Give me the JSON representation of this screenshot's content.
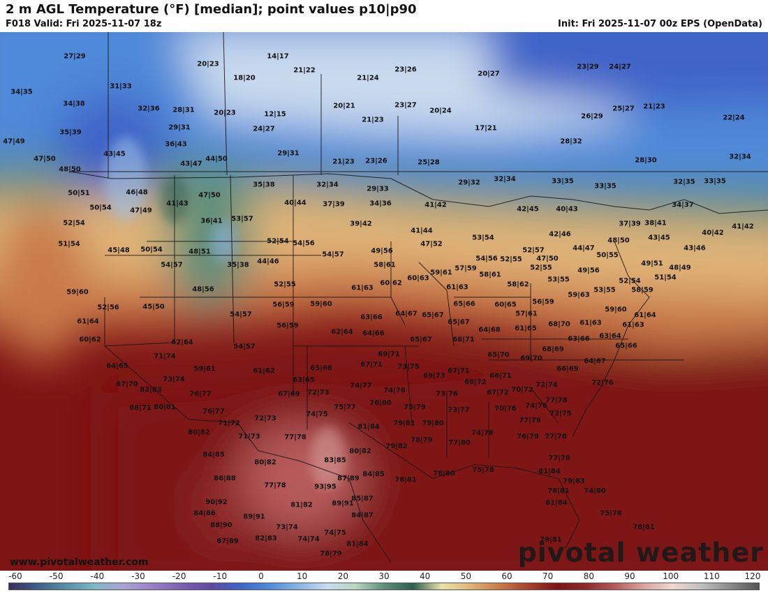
{
  "header": {
    "title": "2 m AGL Temperature (°F) [median]; point values p10|p90",
    "valid": "F018 Valid: Fri 2025-11-07 18z",
    "init": "Init: Fri 2025-11-07 00z EPS (OpenData)"
  },
  "footer": {
    "website": "www.pivotalweather.com",
    "brand": "pivotal weather"
  },
  "scale": {
    "ticks": [
      "-60",
      "-50",
      "-40",
      "-30",
      "-20",
      "-10",
      "0",
      "10",
      "20",
      "30",
      "40",
      "50",
      "60",
      "70",
      "80",
      "90",
      "100",
      "110",
      "120"
    ],
    "colors": [
      "#3a2d5c",
      "#3f5f8a",
      "#5a8fa8",
      "#7fb9c8",
      "#a9a3d4",
      "#9a7fc7",
      "#7b5fb2",
      "#5f4aa0",
      "#3f63c8",
      "#4f89d9",
      "#86b3e6",
      "#c9daee",
      "#b8d8c4",
      "#5f8f7a",
      "#2d5f4f",
      "#e9e3a6",
      "#e0b478",
      "#c97a4a",
      "#a8432c",
      "#7e1414",
      "#8f2a2a",
      "#b65a5a",
      "#d9a4a0",
      "#f1d6cf",
      "#c0c0c0",
      "#8a8a8a",
      "#555555"
    ]
  },
  "points": [
    {
      "id": "p1",
      "text": "27|29"
    },
    {
      "id": "p2",
      "text": "20|23"
    },
    {
      "id": "p3",
      "text": "14|17"
    },
    {
      "id": "p4",
      "text": "21|22"
    },
    {
      "id": "p5",
      "text": "23|26"
    },
    {
      "id": "p6",
      "text": "20|27"
    },
    {
      "id": "p7",
      "text": "23|29"
    },
    {
      "id": "p8",
      "text": "24|27"
    },
    {
      "id": "p9",
      "text": "34|35"
    },
    {
      "id": "p10",
      "text": "31|33"
    },
    {
      "id": "p11",
      "text": "18|20"
    },
    {
      "id": "p12",
      "text": "21|24"
    },
    {
      "id": "p13",
      "text": "34|38"
    },
    {
      "id": "p14",
      "text": "32|36"
    },
    {
      "id": "p15",
      "text": "28|31"
    },
    {
      "id": "p16",
      "text": "20|23"
    },
    {
      "id": "p17",
      "text": "12|15"
    },
    {
      "id": "p18",
      "text": "20|21"
    },
    {
      "id": "p19",
      "text": "23|27"
    },
    {
      "id": "p20",
      "text": "20|24"
    },
    {
      "id": "p21",
      "text": "25|27"
    },
    {
      "id": "p22",
      "text": "21|23"
    },
    {
      "id": "p23",
      "text": "26|29"
    },
    {
      "id": "p24",
      "text": "21|23"
    },
    {
      "id": "p25",
      "text": "22|24"
    },
    {
      "id": "p26",
      "text": "35|39"
    },
    {
      "id": "p27",
      "text": "29|31"
    },
    {
      "id": "p28",
      "text": "24|27"
    },
    {
      "id": "p29",
      "text": "17|21"
    },
    {
      "id": "p30",
      "text": "28|32"
    },
    {
      "id": "p31",
      "text": "47|49"
    },
    {
      "id": "p32",
      "text": "36|43"
    },
    {
      "id": "p33",
      "text": "29|31"
    },
    {
      "id": "p34",
      "text": "43|45"
    },
    {
      "id": "p35",
      "text": "47|50"
    },
    {
      "id": "p36",
      "text": "43|47"
    },
    {
      "id": "p37",
      "text": "44|50"
    },
    {
      "id": "p38",
      "text": "21|23"
    },
    {
      "id": "p39",
      "text": "23|26"
    },
    {
      "id": "p40",
      "text": "25|28"
    },
    {
      "id": "p41",
      "text": "28|30"
    },
    {
      "id": "p42",
      "text": "32|34"
    },
    {
      "id": "p43",
      "text": "48|50"
    },
    {
      "id": "p44",
      "text": "35|38"
    },
    {
      "id": "p45",
      "text": "32|34"
    },
    {
      "id": "p46",
      "text": "29|33"
    },
    {
      "id": "p47",
      "text": "29|32"
    },
    {
      "id": "p48",
      "text": "32|34"
    },
    {
      "id": "p49",
      "text": "33|35"
    },
    {
      "id": "p50",
      "text": "33|35"
    },
    {
      "id": "p51",
      "text": "32|35"
    },
    {
      "id": "p52",
      "text": "33|35"
    },
    {
      "id": "p53",
      "text": "50|51"
    },
    {
      "id": "p54",
      "text": "46|48"
    },
    {
      "id": "p55",
      "text": "47|50"
    },
    {
      "id": "p56",
      "text": "40|44"
    },
    {
      "id": "p57",
      "text": "37|39"
    },
    {
      "id": "p58",
      "text": "34|36"
    },
    {
      "id": "p59",
      "text": "41|42"
    },
    {
      "id": "p60",
      "text": "42|45"
    },
    {
      "id": "p61",
      "text": "40|43"
    },
    {
      "id": "p62",
      "text": "34|37"
    },
    {
      "id": "p63",
      "text": "50|54"
    },
    {
      "id": "p64",
      "text": "47|49"
    },
    {
      "id": "p65",
      "text": "41|43"
    },
    {
      "id": "p66",
      "text": "36|41"
    },
    {
      "id": "p67",
      "text": "53|57"
    },
    {
      "id": "p68",
      "text": "39|42"
    },
    {
      "id": "p69",
      "text": "41|44"
    },
    {
      "id": "p70",
      "text": "42|46"
    },
    {
      "id": "p71",
      "text": "37|39"
    },
    {
      "id": "p72",
      "text": "38|41"
    },
    {
      "id": "p73",
      "text": "40|42"
    },
    {
      "id": "p74",
      "text": "41|42"
    },
    {
      "id": "p75",
      "text": "52|54"
    },
    {
      "id": "p76",
      "text": "51|54"
    },
    {
      "id": "p77",
      "text": "47|52"
    },
    {
      "id": "p78",
      "text": "48|50"
    },
    {
      "id": "p79",
      "text": "43|45"
    },
    {
      "id": "p80",
      "text": "53|54"
    },
    {
      "id": "p81",
      "text": "45|48"
    },
    {
      "id": "p82",
      "text": "50|54"
    },
    {
      "id": "p83",
      "text": "48|51"
    },
    {
      "id": "p84",
      "text": "52|54"
    },
    {
      "id": "p85",
      "text": "54|56"
    },
    {
      "id": "p86",
      "text": "49|56"
    },
    {
      "id": "p87",
      "text": "52|57"
    },
    {
      "id": "p88",
      "text": "44|47"
    },
    {
      "id": "p89",
      "text": "50|55"
    },
    {
      "id": "p90",
      "text": "43|46"
    },
    {
      "id": "p91",
      "text": "49|51"
    },
    {
      "id": "p92",
      "text": "54|57"
    },
    {
      "id": "p93",
      "text": "35|38"
    },
    {
      "id": "p94",
      "text": "44|46"
    },
    {
      "id": "p95",
      "text": "54|57"
    },
    {
      "id": "p96",
      "text": "58|61"
    },
    {
      "id": "p97",
      "text": "54|56"
    },
    {
      "id": "p98",
      "text": "52|55"
    },
    {
      "id": "p99",
      "text": "47|50"
    },
    {
      "id": "p100",
      "text": "52|55"
    },
    {
      "id": "p101",
      "text": "49|56"
    },
    {
      "id": "p102",
      "text": "48|49"
    },
    {
      "id": "p103",
      "text": "51|54"
    },
    {
      "id": "p104",
      "text": "59|60"
    },
    {
      "id": "p105",
      "text": "48|56"
    },
    {
      "id": "p106",
      "text": "52|55"
    },
    {
      "id": "p107",
      "text": "59|61"
    },
    {
      "id": "p108",
      "text": "57|59"
    },
    {
      "id": "p109",
      "text": "58|61"
    },
    {
      "id": "p110",
      "text": "53|55"
    },
    {
      "id": "p111",
      "text": "52|54"
    },
    {
      "id": "p112",
      "text": "61|63"
    },
    {
      "id": "p113",
      "text": "60|62"
    },
    {
      "id": "p114",
      "text": "60|63"
    },
    {
      "id": "p115",
      "text": "58|62"
    },
    {
      "id": "p116",
      "text": "53|55"
    },
    {
      "id": "p117",
      "text": "58|59"
    },
    {
      "id": "p118",
      "text": "52|56"
    },
    {
      "id": "p119",
      "text": "45|50"
    },
    {
      "id": "p120",
      "text": "56|59"
    },
    {
      "id": "p121",
      "text": "59|60"
    },
    {
      "id": "p122",
      "text": "61|63"
    },
    {
      "id": "p123",
      "text": "65|66"
    },
    {
      "id": "p124",
      "text": "60|65"
    },
    {
      "id": "p125",
      "text": "56|59"
    },
    {
      "id": "p126",
      "text": "59|63"
    },
    {
      "id": "p127",
      "text": "59|60"
    },
    {
      "id": "p128",
      "text": "61|64"
    },
    {
      "id": "p129",
      "text": "54|57"
    },
    {
      "id": "p130",
      "text": "63|66"
    },
    {
      "id": "p131",
      "text": "64|67"
    },
    {
      "id": "p132",
      "text": "65|67"
    },
    {
      "id": "p133",
      "text": "57|61"
    },
    {
      "id": "p134",
      "text": "56|59"
    },
    {
      "id": "p135",
      "text": "62|64"
    },
    {
      "id": "p136",
      "text": "65|67"
    },
    {
      "id": "p137",
      "text": "64|68"
    },
    {
      "id": "p138",
      "text": "61|65"
    },
    {
      "id": "p139",
      "text": "68|70"
    },
    {
      "id": "p140",
      "text": "61|63"
    },
    {
      "id": "p141",
      "text": "61|63"
    },
    {
      "id": "p142",
      "text": "61|64"
    },
    {
      "id": "p143",
      "text": "64|66"
    },
    {
      "id": "p144",
      "text": "65|67"
    },
    {
      "id": "p145",
      "text": "68|71"
    },
    {
      "id": "p146",
      "text": "63|66"
    },
    {
      "id": "p147",
      "text": "63|64"
    },
    {
      "id": "p148",
      "text": "60|62"
    },
    {
      "id": "p149",
      "text": "62|64"
    },
    {
      "id": "p150",
      "text": "54|57"
    },
    {
      "id": "p151",
      "text": "65|66"
    },
    {
      "id": "p152",
      "text": "69|71"
    },
    {
      "id": "p153",
      "text": "65|70"
    },
    {
      "id": "p154",
      "text": "69|70"
    },
    {
      "id": "p155",
      "text": "68|69"
    },
    {
      "id": "p156",
      "text": "64|67"
    },
    {
      "id": "p157",
      "text": "65|66"
    },
    {
      "id": "p158",
      "text": "71|74"
    },
    {
      "id": "p159",
      "text": "64|65"
    },
    {
      "id": "p160",
      "text": "59|61"
    },
    {
      "id": "p161",
      "text": "61|62"
    },
    {
      "id": "p162",
      "text": "67|71"
    },
    {
      "id": "p163",
      "text": "73|75"
    },
    {
      "id": "p164",
      "text": "67|71"
    },
    {
      "id": "p165",
      "text": "66|69"
    },
    {
      "id": "p166",
      "text": "69|73"
    },
    {
      "id": "p167",
      "text": "73|74"
    },
    {
      "id": "p168",
      "text": "63|65"
    },
    {
      "id": "p169",
      "text": "66|71"
    },
    {
      "id": "p170",
      "text": "72|76"
    },
    {
      "id": "p171",
      "text": "67|70"
    },
    {
      "id": "p172",
      "text": "82|83"
    },
    {
      "id": "p173",
      "text": "74|77"
    },
    {
      "id": "p174",
      "text": "68|72"
    },
    {
      "id": "p175",
      "text": "72|74"
    },
    {
      "id": "p176",
      "text": "72|73"
    },
    {
      "id": "p177",
      "text": "74|76"
    },
    {
      "id": "p178",
      "text": "70|72"
    },
    {
      "id": "p179",
      "text": "67|69"
    },
    {
      "id": "p180",
      "text": "76|77"
    },
    {
      "id": "p181",
      "text": "73|76"
    },
    {
      "id": "p182",
      "text": "67|72"
    },
    {
      "id": "p183",
      "text": "77|78"
    },
    {
      "id": "p184",
      "text": "68|71"
    },
    {
      "id": "p185",
      "text": "80|81"
    },
    {
      "id": "p186",
      "text": "76|80"
    },
    {
      "id": "p187",
      "text": "75|79"
    },
    {
      "id": "p188",
      "text": "70|76"
    },
    {
      "id": "p189",
      "text": "74|76"
    },
    {
      "id": "p190",
      "text": "76|77"
    },
    {
      "id": "p191",
      "text": "75|77"
    },
    {
      "id": "p192",
      "text": "73|77"
    },
    {
      "id": "p193",
      "text": "72|75"
    },
    {
      "id": "p194",
      "text": "74|75"
    },
    {
      "id": "p195",
      "text": "72|73"
    },
    {
      "id": "p196",
      "text": "71|72"
    },
    {
      "id": "p197",
      "text": "79|81"
    },
    {
      "id": "p198",
      "text": "79|80"
    },
    {
      "id": "p199",
      "text": "77|79"
    },
    {
      "id": "p200",
      "text": "80|82"
    },
    {
      "id": "p201",
      "text": "81|84"
    },
    {
      "id": "p202",
      "text": "74|78"
    },
    {
      "id": "p203",
      "text": "76|79"
    },
    {
      "id": "p204",
      "text": "77|78"
    },
    {
      "id": "p205",
      "text": "71|73"
    },
    {
      "id": "p206",
      "text": "77|78"
    },
    {
      "id": "p207",
      "text": "78|79"
    },
    {
      "id": "p208",
      "text": "77|80"
    },
    {
      "id": "p209",
      "text": "79|82"
    },
    {
      "id": "p210",
      "text": "84|85"
    },
    {
      "id": "p211",
      "text": "80|82"
    },
    {
      "id": "p212",
      "text": "77|78"
    },
    {
      "id": "p213",
      "text": "83|85"
    },
    {
      "id": "p214",
      "text": "80|82"
    },
    {
      "id": "p215",
      "text": "86|88"
    },
    {
      "id": "p216",
      "text": "87|89"
    },
    {
      "id": "p217",
      "text": "84|85"
    },
    {
      "id": "p218",
      "text": "78|81"
    },
    {
      "id": "p219",
      "text": "78|80"
    },
    {
      "id": "p220",
      "text": "75|78"
    },
    {
      "id": "p221",
      "text": "81|84"
    },
    {
      "id": "p222",
      "text": "77|78"
    },
    {
      "id": "p223",
      "text": "93|95"
    },
    {
      "id": "p224",
      "text": "79|83"
    },
    {
      "id": "p225",
      "text": "90|92"
    },
    {
      "id": "p226",
      "text": "85|87"
    },
    {
      "id": "p227",
      "text": "78|81"
    },
    {
      "id": "p228",
      "text": "74|80"
    },
    {
      "id": "p229",
      "text": "81|82"
    },
    {
      "id": "p230",
      "text": "89|91"
    },
    {
      "id": "p231",
      "text": "81|84"
    },
    {
      "id": "p232",
      "text": "84|86"
    },
    {
      "id": "p233",
      "text": "89|91"
    },
    {
      "id": "p234",
      "text": "84|87"
    },
    {
      "id": "p235",
      "text": "75|78"
    },
    {
      "id": "p236",
      "text": "88|90"
    },
    {
      "id": "p237",
      "text": "73|74"
    },
    {
      "id": "p238",
      "text": "78|81"
    },
    {
      "id": "p239",
      "text": "87|89"
    },
    {
      "id": "p240",
      "text": "82|83"
    },
    {
      "id": "p241",
      "text": "74|74"
    },
    {
      "id": "p242",
      "text": "74|75"
    },
    {
      "id": "p243",
      "text": "81|84"
    },
    {
      "id": "p244",
      "text": "79|81"
    },
    {
      "id": "p245",
      "text": "78|79"
    }
  ]
}
